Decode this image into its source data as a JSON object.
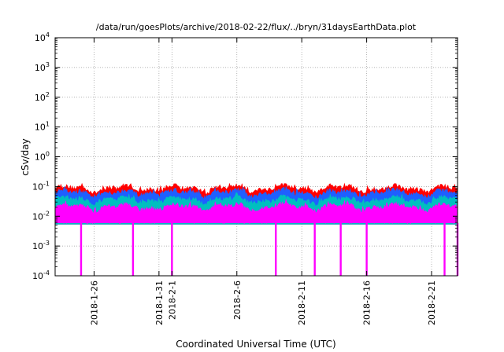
{
  "chart_data": {
    "type": "area",
    "title": "/data/run/goesPlots/archive/2018-02-22/flux/../bryn/31daysEarthData.plot",
    "xlabel": "Coordinated Universal Time (UTC)",
    "ylabel": "cSv/day",
    "yscale": "log",
    "ylim": [
      0.0001,
      10000
    ],
    "xlim": [
      "2018-01-23",
      "2018-02-23"
    ],
    "grid": true,
    "y_ticks": [
      {
        "base": "10",
        "exp": "-4"
      },
      {
        "base": "10",
        "exp": "-3"
      },
      {
        "base": "10",
        "exp": "-2"
      },
      {
        "base": "10",
        "exp": "-1"
      },
      {
        "base": "10",
        "exp": "0"
      },
      {
        "base": "10",
        "exp": "1"
      },
      {
        "base": "10",
        "exp": "2"
      },
      {
        "base": "10",
        "exp": "3"
      },
      {
        "base": "10",
        "exp": "4"
      }
    ],
    "x_ticks": [
      "2018-1-26",
      "2018-1-31",
      "2018-2-1",
      "2018-2-6",
      "2018-2-11",
      "2018-2-16",
      "2018-2-21"
    ],
    "series": [
      {
        "color": "#ff0000",
        "typical_max": 0.1,
        "typical_level": 0.085
      },
      {
        "color": "#1f5fff",
        "typical_max": 0.08,
        "typical_level": 0.06
      },
      {
        "color": "#00bfbf",
        "typical_max": 0.05,
        "typical_level": 0.035
      },
      {
        "color": "#ff00ff",
        "typical_max": 0.03,
        "typical_level": 0.02,
        "floor": 0.006
      }
    ],
    "dropouts": [
      "2018-01-25",
      "2018-01-29",
      "2018-02-01",
      "2018-02-09",
      "2018-02-12",
      "2018-02-14",
      "2018-02-16",
      "2018-02-22",
      "2018-02-23"
    ]
  }
}
